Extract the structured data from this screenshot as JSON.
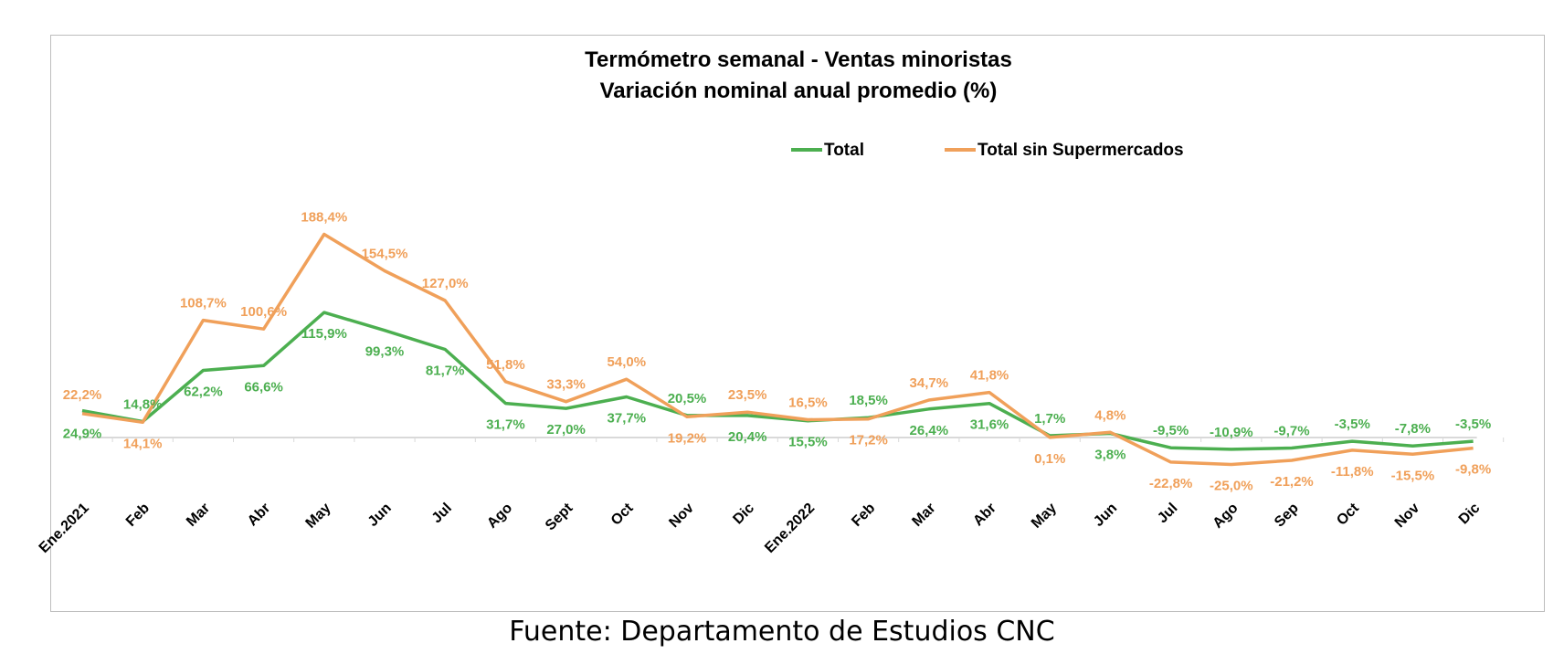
{
  "chart_data": {
    "type": "line",
    "title": "Termómetro semanal - Ventas minoristas",
    "subtitle": "Variación nominal anual promedio (%)",
    "categories": [
      "Ene.2021",
      "Feb",
      "Mar",
      "Abr",
      "May",
      "Jun",
      "Jul",
      "Ago",
      "Sept",
      "Oct",
      "Nov",
      "Dic",
      "Ene.2022",
      "Feb",
      "Mar",
      "Abr",
      "May",
      "Jun",
      "Jul",
      "Ago",
      "Sep",
      "Oct",
      "Nov",
      "Dic"
    ],
    "series": [
      {
        "name": "Total",
        "color": "#4caf50",
        "values": [
          24.9,
          14.8,
          62.2,
          66.6,
          115.9,
          99.3,
          81.7,
          31.7,
          27.0,
          37.7,
          20.5,
          20.4,
          15.5,
          18.5,
          26.4,
          31.6,
          1.7,
          3.8,
          -9.5,
          -10.9,
          -9.7,
          -3.5,
          -7.8,
          -3.5
        ],
        "labels": [
          "24,9%",
          "14,8%",
          "62,2%",
          "66,6%",
          "115,9%",
          "99,3%",
          "81,7%",
          "31,7%",
          "27,0%",
          "37,7%",
          "20,5%",
          "20,4%",
          "15,5%",
          "18,5%",
          "26,4%",
          "31,6%",
          "1,7%",
          "3,8%",
          "-9,5%",
          "-10,9%",
          "-9,7%",
          "-3,5%",
          "-7,8%",
          "-3,5%"
        ]
      },
      {
        "name": "Total sin Supermercados",
        "color": "#f0a05a",
        "values": [
          22.2,
          14.1,
          108.7,
          100.6,
          188.4,
          154.5,
          127.0,
          51.8,
          33.3,
          54.0,
          19.2,
          23.5,
          16.5,
          17.2,
          34.7,
          41.8,
          0.1,
          4.8,
          -22.8,
          -25.0,
          -21.2,
          -11.8,
          -15.5,
          -9.8
        ],
        "labels": [
          "22,2%",
          "14,1%",
          "108,7%",
          "100,6%",
          "188,4%",
          "154,5%",
          "127,0%",
          "51,8%",
          "33,3%",
          "54,0%",
          "19,2%",
          "23,5%",
          "16,5%",
          "17,2%",
          "34,7%",
          "41,8%",
          "0,1%",
          "4,8%",
          "-22,8%",
          "-25,0%",
          "-21,2%",
          "-11,8%",
          "-15,5%",
          "-9,8%"
        ]
      }
    ],
    "ylim": [
      -100,
      250
    ],
    "grid": false,
    "legend_position": "top-right"
  },
  "source_text": "Fuente: Departamento de Estudios CNC"
}
